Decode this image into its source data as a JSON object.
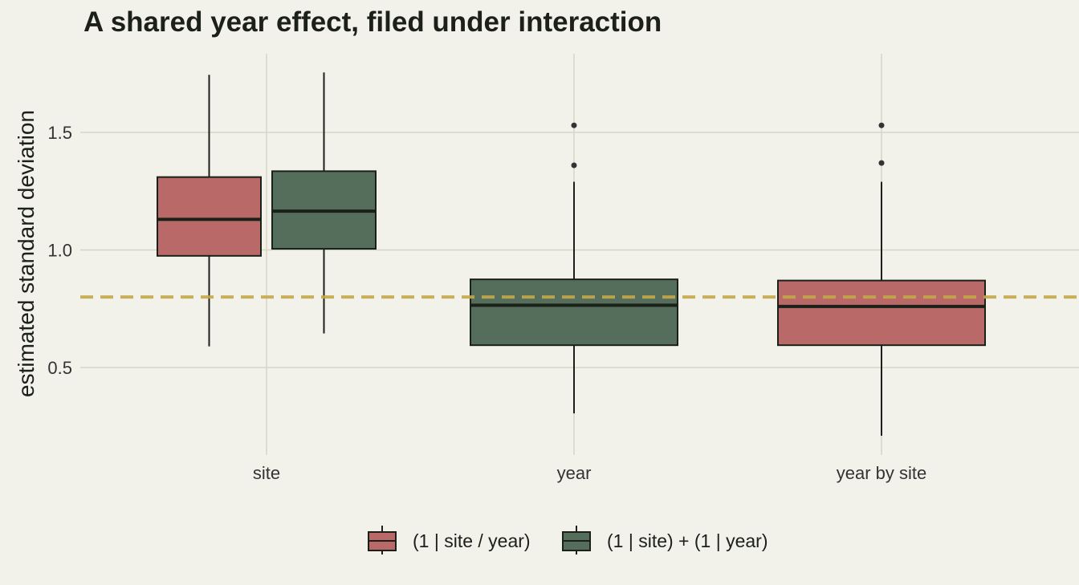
{
  "chart_data": {
    "type": "boxplot",
    "title": "A shared year effect, filed under interaction",
    "xlabel": "",
    "ylabel": "estimated standard deviation",
    "categories": [
      "site",
      "year",
      "year by site"
    ],
    "yticks": [
      0.5,
      1.0,
      1.5
    ],
    "ytick_labels": [
      "0.5",
      "1.0",
      "1.5"
    ],
    "ylim": [
      0.19,
      1.8
    ],
    "reference_line": {
      "y": 0.8,
      "style": "dashed",
      "color": "#c4a84b"
    },
    "grid": true,
    "legend_position": "bottom",
    "series": [
      {
        "name": "(1 | site / year)",
        "color": "#b96a68",
        "boxes": [
          {
            "category": "site",
            "min": 0.59,
            "q1": 0.975,
            "median": 1.13,
            "q3": 1.31,
            "max": 1.745,
            "outliers": []
          },
          {
            "category": "year by site",
            "min": 0.21,
            "q1": 0.595,
            "median": 0.76,
            "q3": 0.87,
            "max": 1.29,
            "outliers": [
              1.37,
              1.53
            ]
          }
        ]
      },
      {
        "name": "(1 | site) + (1 | year)",
        "color": "#546e5b",
        "boxes": [
          {
            "category": "site",
            "min": 0.645,
            "q1": 1.005,
            "median": 1.165,
            "q3": 1.335,
            "max": 1.755,
            "outliers": []
          },
          {
            "category": "year",
            "min": 0.305,
            "q1": 0.595,
            "median": 0.765,
            "q3": 0.875,
            "max": 1.29,
            "outliers": [
              1.36,
              1.53
            ]
          }
        ]
      }
    ]
  }
}
